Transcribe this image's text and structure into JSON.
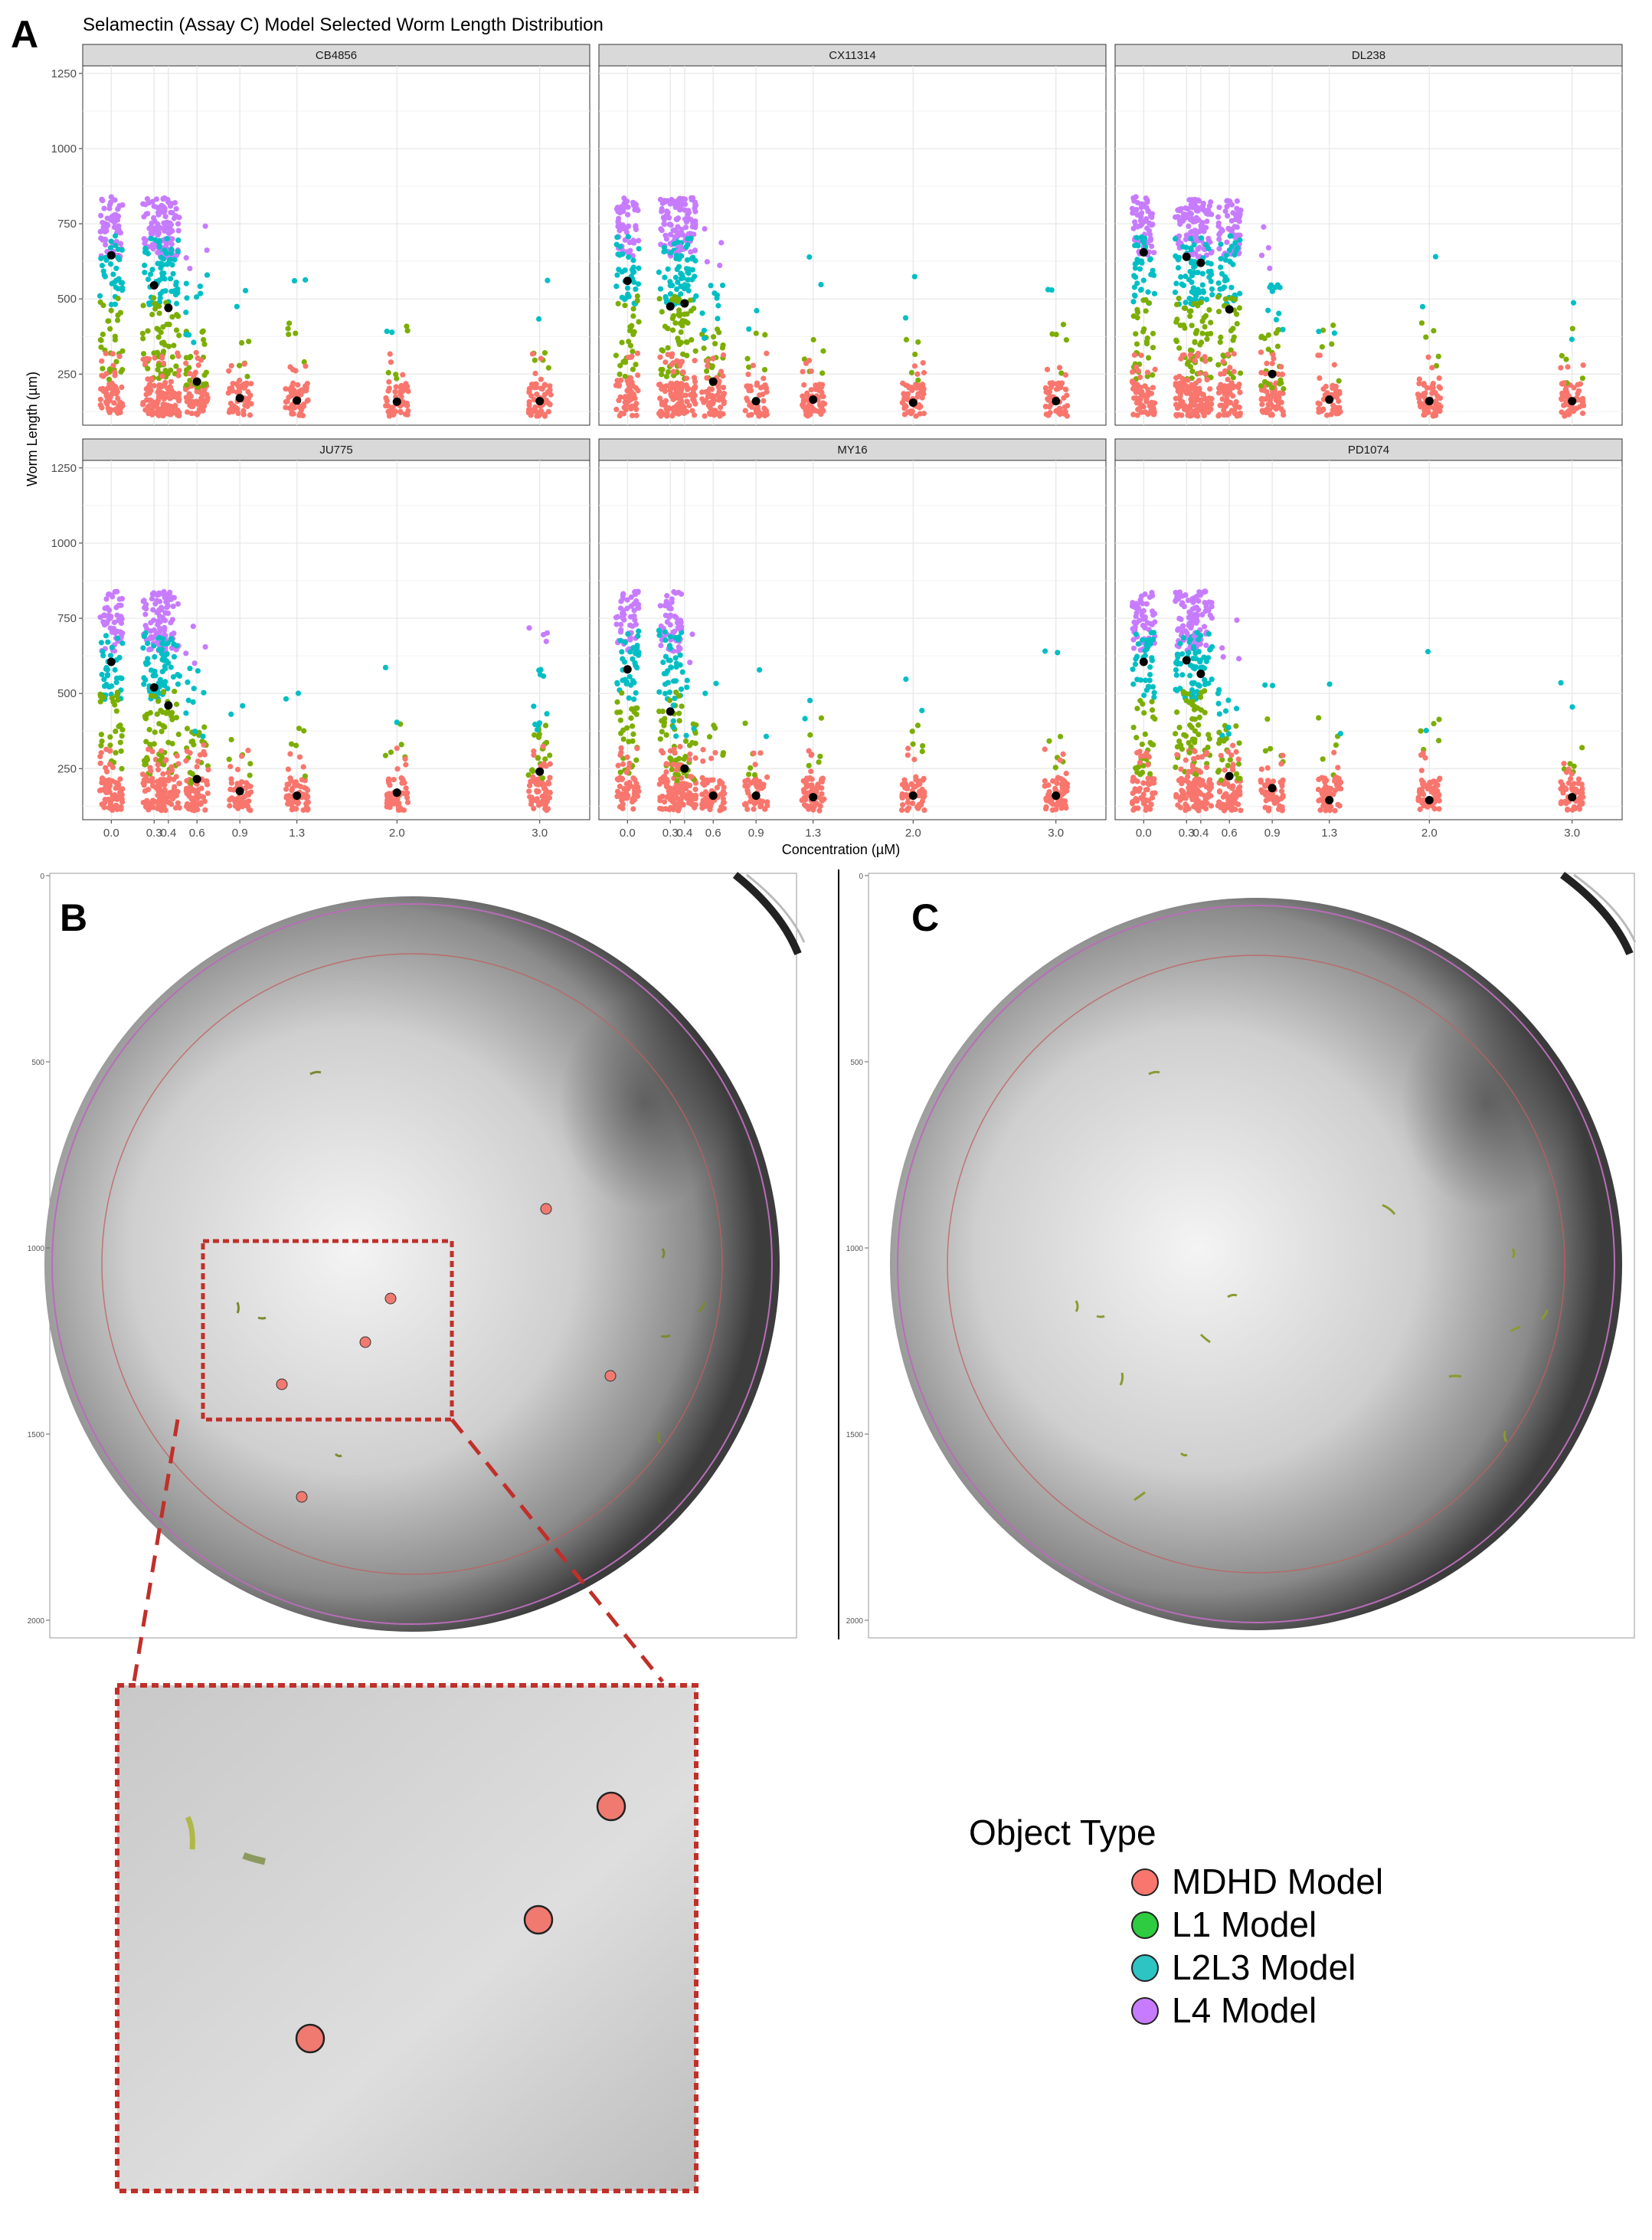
{
  "panels": {
    "a_letter": "A",
    "b_letter": "B",
    "c_letter": "C"
  },
  "chart_data": {
    "type": "scatter",
    "title": "Selamectin (Assay C) Model Selected Worm Length Distribution",
    "xlabel": "Concentration (µM)",
    "ylabel": "Worm Length (µm)",
    "x_ticks": [
      0.0,
      0.3,
      0.4,
      0.6,
      0.9,
      1.3,
      2.0,
      3.0
    ],
    "x_tick_labels": [
      "0.0",
      "0.3",
      "0.4",
      "0.6",
      "0.9",
      "1.3",
      "2.0",
      "3.0"
    ],
    "y_ticks": [
      250,
      500,
      750,
      1000,
      1250
    ],
    "y_tick_labels": [
      "250",
      "500",
      "750",
      "1000",
      "1250"
    ],
    "ylim": [
      80,
      1275
    ],
    "grid": true,
    "series": [
      {
        "name": "MDHD Model",
        "color": "#f8766d"
      },
      {
        "name": "L1 Model",
        "color": "#7cae00"
      },
      {
        "name": "L2L3 Model",
        "color": "#00bfc4"
      },
      {
        "name": "L4 Model",
        "color": "#c77cff"
      }
    ],
    "facets": [
      {
        "strain": "CB4856",
        "medians": [
          645,
          545,
          470,
          225,
          170,
          162,
          158,
          160
        ]
      },
      {
        "strain": "CX11314",
        "medians": [
          560,
          475,
          485,
          225,
          160,
          165,
          155,
          160
        ]
      },
      {
        "strain": "DL238",
        "medians": [
          655,
          640,
          620,
          465,
          250,
          165,
          160,
          160
        ]
      },
      {
        "strain": "JU775",
        "medians": [
          605,
          520,
          460,
          215,
          175,
          160,
          170,
          240
        ]
      },
      {
        "strain": "MY16",
        "medians": [
          580,
          440,
          250,
          160,
          160,
          155,
          160,
          160
        ]
      },
      {
        "strain": "PD1074",
        "medians": [
          605,
          610,
          565,
          225,
          185,
          145,
          145,
          155
        ]
      }
    ]
  },
  "image_panels": {
    "y_tick_labels": [
      "0",
      "500",
      "1000",
      "1500",
      "2000"
    ]
  },
  "legend": {
    "title": "Object Type",
    "items": [
      {
        "label": "MDHD Model",
        "color": "#f8766d"
      },
      {
        "label": "L1 Model",
        "color": "#2ecc40"
      },
      {
        "label": "L2L3 Model",
        "color": "#2ec4c4"
      },
      {
        "label": "L4 Model",
        "color": "#c77cff"
      }
    ]
  }
}
